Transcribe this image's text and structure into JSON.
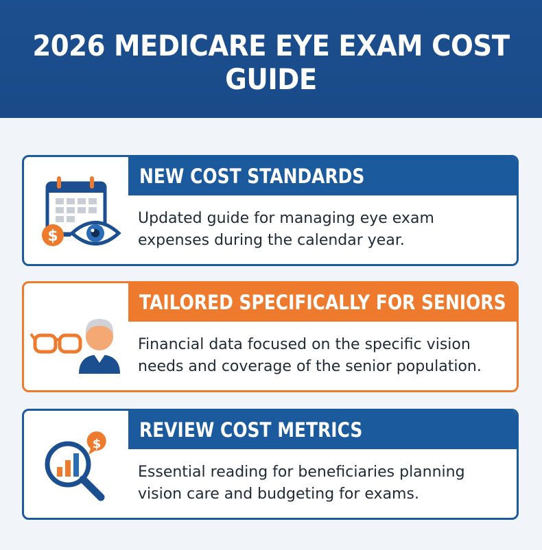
{
  "header": {
    "title": "2026 MEDICARE EYE EXAM COST GUIDE"
  },
  "cards": [
    {
      "title": "NEW COST STANDARDS",
      "text": "Updated guide for managing eye exam expenses during the calendar year.",
      "icon": "calendar-eye-dollar-icon"
    },
    {
      "title": "TAILORED SPECIFICALLY FOR SENIORS",
      "text": "Financial data focused on the specific vision needs and coverage of the senior population.",
      "icon": "senior-glasses-icon"
    },
    {
      "title": "REVIEW COST METRICS",
      "text": "Essential reading for beneficiaries planning vision care and budgeting for exams.",
      "icon": "magnifier-chart-icon"
    }
  ],
  "colors": {
    "navy": "#1c4f8f",
    "blue": "#1c5a9e",
    "orange": "#ee7a2d"
  }
}
